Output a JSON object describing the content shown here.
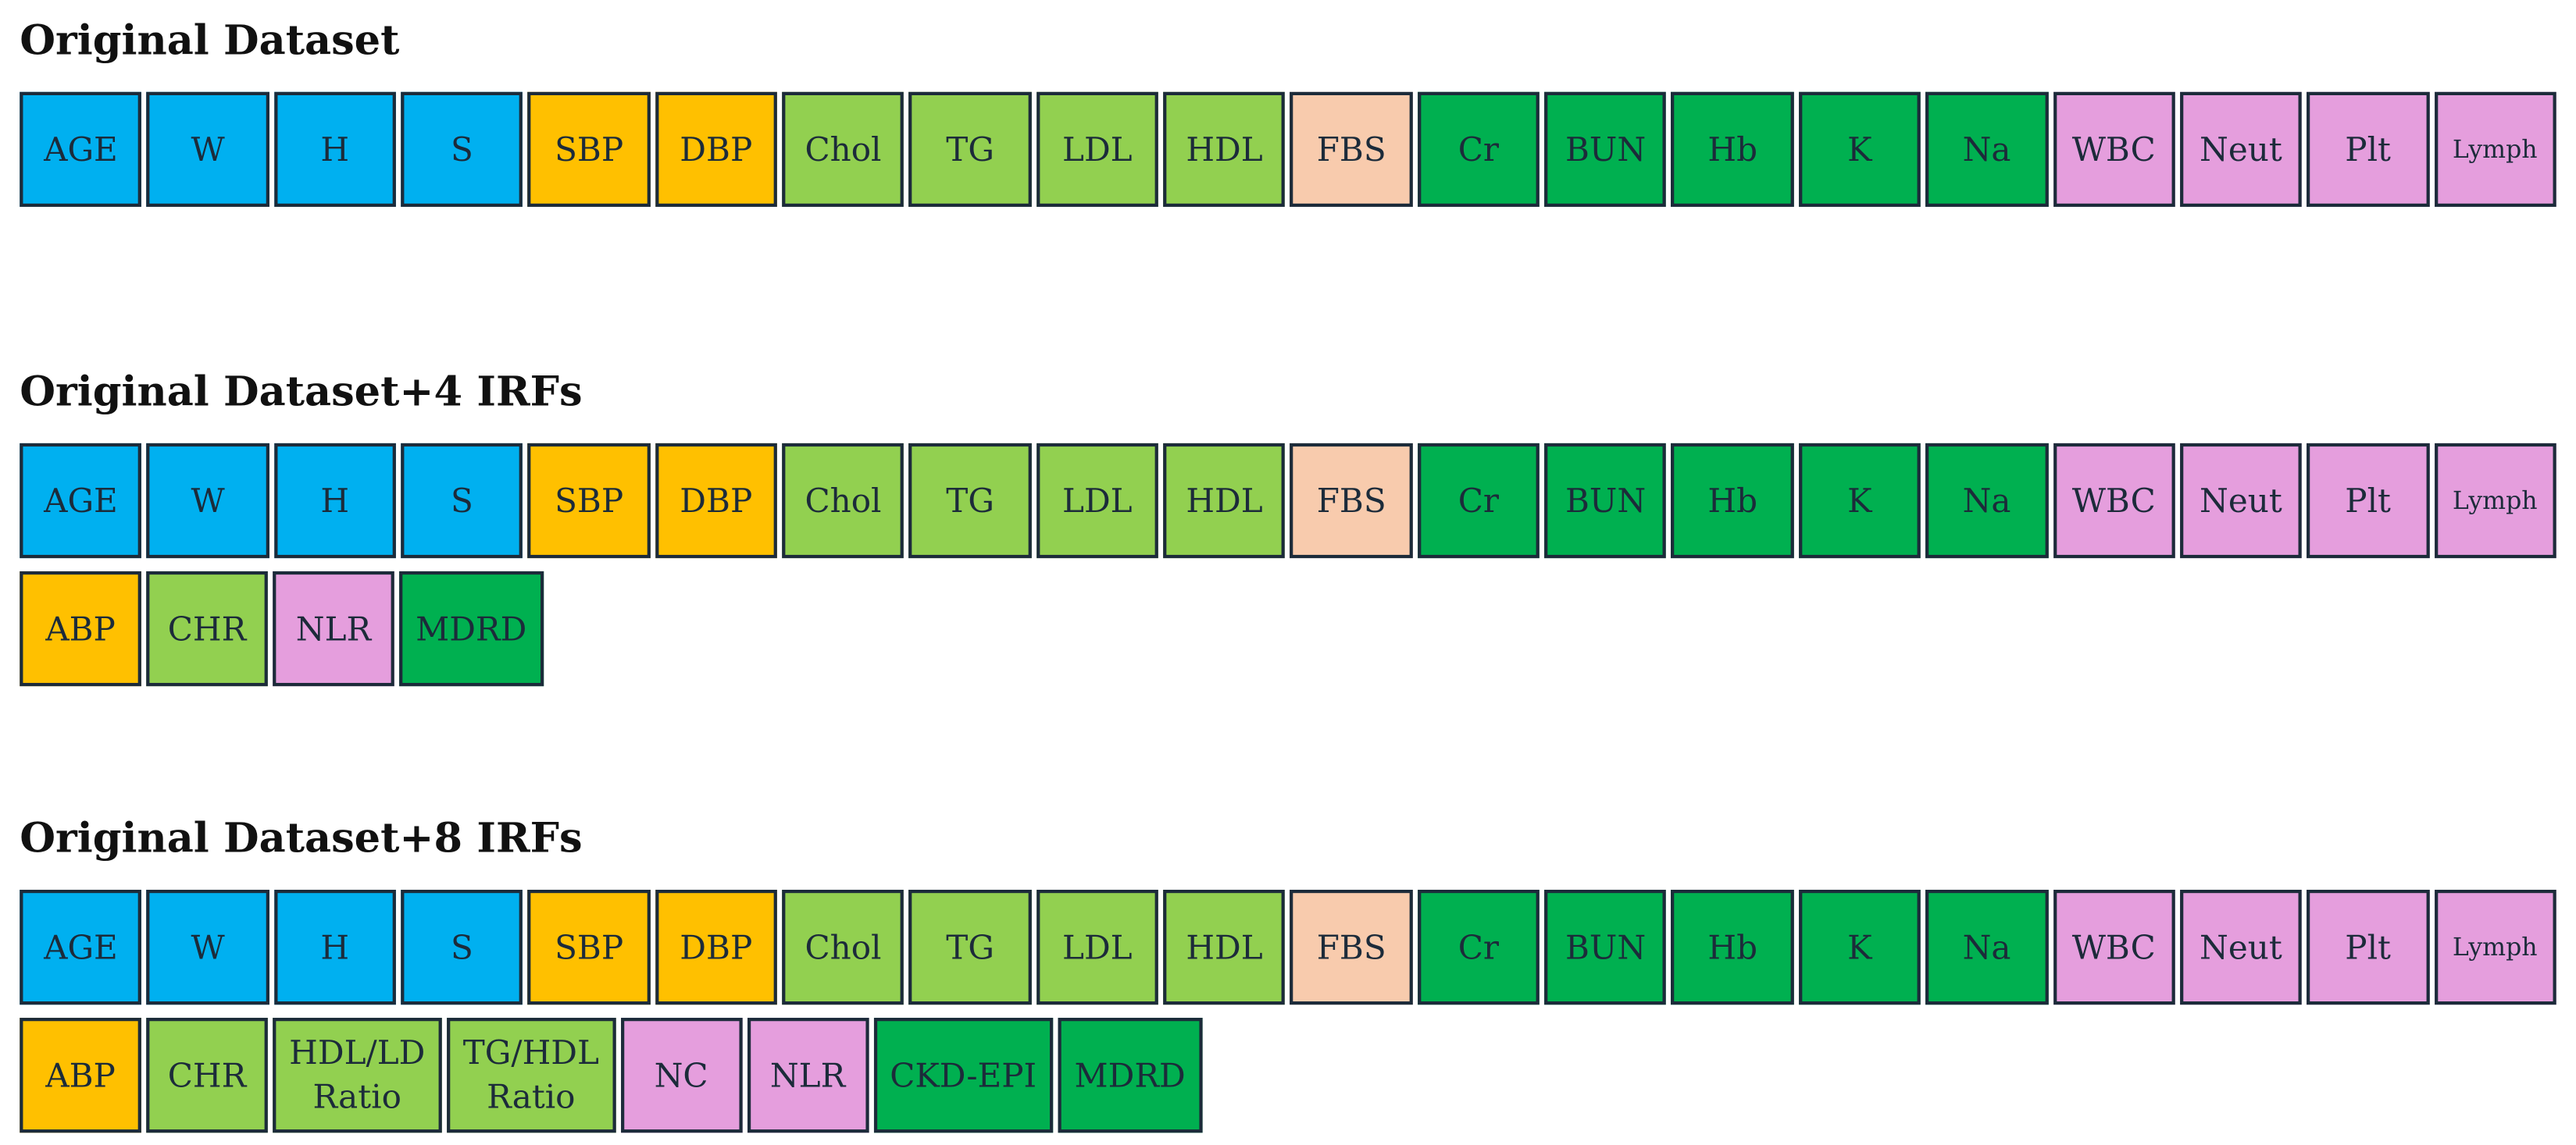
{
  "sections": [
    {
      "title": "Original Dataset",
      "rows": [
        [
          {
            "label": "AGE",
            "color": "#00b0f0"
          },
          {
            "label": "W",
            "color": "#00b0f0"
          },
          {
            "label": "H",
            "color": "#00b0f0"
          },
          {
            "label": "S",
            "color": "#00b0f0"
          },
          {
            "label": "SBP",
            "color": "#ffc000"
          },
          {
            "label": "DBP",
            "color": "#ffc000"
          },
          {
            "label": "Chol",
            "color": "#92d050"
          },
          {
            "label": "TG",
            "color": "#92d050"
          },
          {
            "label": "LDL",
            "color": "#92d050"
          },
          {
            "label": "HDL",
            "color": "#92d050"
          },
          {
            "label": "FBS",
            "color": "#f8cbad"
          },
          {
            "label": "Cr",
            "color": "#00b050"
          },
          {
            "label": "BUN",
            "color": "#00b050"
          },
          {
            "label": "Hb",
            "color": "#00b050"
          },
          {
            "label": "K",
            "color": "#00b050"
          },
          {
            "label": "Na",
            "color": "#00b050"
          },
          {
            "label": "WBC",
            "color": "#e59edd"
          },
          {
            "label": "Neut",
            "color": "#e59edd"
          },
          {
            "label": "Plt",
            "color": "#e59edd"
          },
          {
            "label": "Lymph",
            "color": "#e59edd"
          }
        ]
      ]
    },
    {
      "title": "Original Dataset+4 IRFs",
      "rows": [
        [
          {
            "label": "AGE",
            "color": "#00b0f0"
          },
          {
            "label": "W",
            "color": "#00b0f0"
          },
          {
            "label": "H",
            "color": "#00b0f0"
          },
          {
            "label": "S",
            "color": "#00b0f0"
          },
          {
            "label": "SBP",
            "color": "#ffc000"
          },
          {
            "label": "DBP",
            "color": "#ffc000"
          },
          {
            "label": "Chol",
            "color": "#92d050"
          },
          {
            "label": "TG",
            "color": "#92d050"
          },
          {
            "label": "LDL",
            "color": "#92d050"
          },
          {
            "label": "HDL",
            "color": "#92d050"
          },
          {
            "label": "FBS",
            "color": "#f8cbad"
          },
          {
            "label": "Cr",
            "color": "#00b050"
          },
          {
            "label": "BUN",
            "color": "#00b050"
          },
          {
            "label": "Hb",
            "color": "#00b050"
          },
          {
            "label": "K",
            "color": "#00b050"
          },
          {
            "label": "Na",
            "color": "#00b050"
          },
          {
            "label": "WBC",
            "color": "#e59edd"
          },
          {
            "label": "Neut",
            "color": "#e59edd"
          },
          {
            "label": "Plt",
            "color": "#e59edd"
          },
          {
            "label": "Lymph",
            "color": "#e59edd"
          }
        ],
        [
          {
            "label": "ABP",
            "color": "#ffc000"
          },
          {
            "label": "CHR",
            "color": "#92d050"
          },
          {
            "label": "NLR",
            "color": "#e59edd"
          },
          {
            "label": "MDRD",
            "color": "#00b050"
          }
        ]
      ]
    },
    {
      "title": "Original Dataset+8 IRFs",
      "rows": [
        [
          {
            "label": "AGE",
            "color": "#00b0f0"
          },
          {
            "label": "W",
            "color": "#00b0f0"
          },
          {
            "label": "H",
            "color": "#00b0f0"
          },
          {
            "label": "S",
            "color": "#00b0f0"
          },
          {
            "label": "SBP",
            "color": "#ffc000"
          },
          {
            "label": "DBP",
            "color": "#ffc000"
          },
          {
            "label": "Chol",
            "color": "#92d050"
          },
          {
            "label": "TG",
            "color": "#92d050"
          },
          {
            "label": "LDL",
            "color": "#92d050"
          },
          {
            "label": "HDL",
            "color": "#92d050"
          },
          {
            "label": "FBS",
            "color": "#f8cbad"
          },
          {
            "label": "Cr",
            "color": "#00b050"
          },
          {
            "label": "BUN",
            "color": "#00b050"
          },
          {
            "label": "Hb",
            "color": "#00b050"
          },
          {
            "label": "K",
            "color": "#00b050"
          },
          {
            "label": "Na",
            "color": "#00b050"
          },
          {
            "label": "WBC",
            "color": "#e59edd"
          },
          {
            "label": "Neut",
            "color": "#e59edd"
          },
          {
            "label": "Plt",
            "color": "#e59edd"
          },
          {
            "label": "Lymph",
            "color": "#e59edd"
          }
        ],
        [
          {
            "label": "ABP",
            "color": "#ffc000"
          },
          {
            "label": "CHR",
            "color": "#92d050"
          },
          {
            "label": "HDL/LD\nRatio",
            "color": "#92d050"
          },
          {
            "label": "TG/HDL\nRatio",
            "color": "#92d050"
          },
          {
            "label": "NC",
            "color": "#e59edd"
          },
          {
            "label": "NLR",
            "color": "#e59edd"
          },
          {
            "label": "CKD-EPI",
            "color": "#00b050"
          },
          {
            "label": "MDRD",
            "color": "#00b050"
          }
        ]
      ]
    }
  ]
}
